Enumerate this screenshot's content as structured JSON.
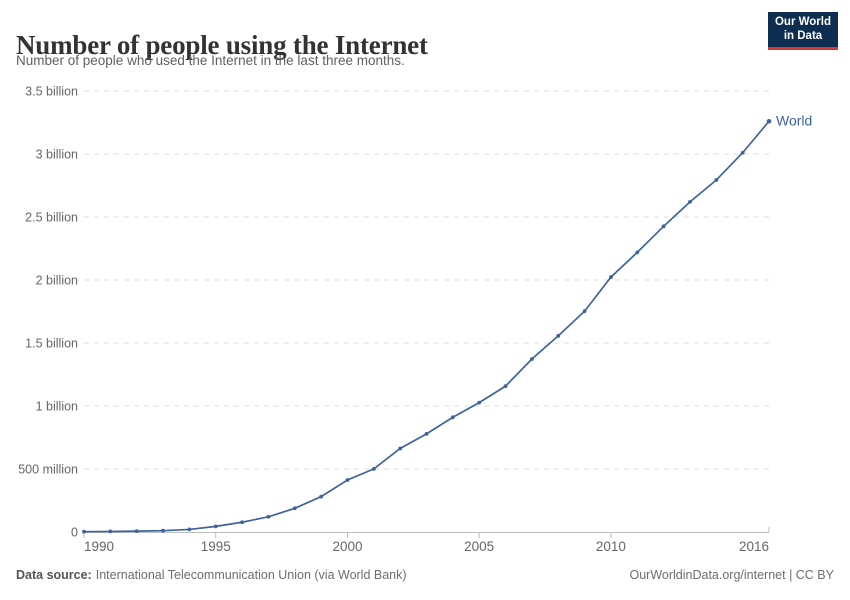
{
  "header": {
    "title": "Number of people using the Internet",
    "subtitle": "Number of people who used the Internet in the last three months.",
    "logo": {
      "line1": "Our World",
      "line2": "in Data"
    }
  },
  "chart_data": {
    "type": "line",
    "title": "Number of people using the Internet",
    "xlabel": "",
    "ylabel": "",
    "unit": "people",
    "x": [
      1990,
      1991,
      1992,
      1993,
      1994,
      1995,
      1996,
      1997,
      1998,
      1999,
      2000,
      2001,
      2002,
      2003,
      2004,
      2005,
      2006,
      2007,
      2008,
      2009,
      2010,
      2011,
      2012,
      2013,
      2014,
      2015,
      2016
    ],
    "series": [
      {
        "name": "World",
        "color": "#3d639e",
        "values_millions": [
          2.6,
          4.5,
          7.0,
          10.3,
          20.5,
          44.8,
          77.4,
          120.8,
          188.0,
          280.9,
          412.8,
          500.6,
          662.7,
          778.6,
          910.4,
          1026.6,
          1157.5,
          1373.0,
          1556.3,
          1752.3,
          2023.2,
          2219.0,
          2426.0,
          2620.0,
          2793.3,
          3010.0,
          3260.0
        ]
      }
    ],
    "end_label": "World",
    "y_ticks": [
      {
        "value_millions": 0,
        "label": "0"
      },
      {
        "value_millions": 500,
        "label": "500 million"
      },
      {
        "value_millions": 1000,
        "label": "1 billion"
      },
      {
        "value_millions": 1500,
        "label": "1.5 billion"
      },
      {
        "value_millions": 2000,
        "label": "2 billion"
      },
      {
        "value_millions": 2500,
        "label": "2.5 billion"
      },
      {
        "value_millions": 3000,
        "label": "3 billion"
      },
      {
        "value_millions": 3500,
        "label": "3.5 billion"
      }
    ],
    "x_ticks": [
      {
        "year": 1990,
        "label": "1990",
        "align": "start"
      },
      {
        "year": 1995,
        "label": "1995",
        "align": "middle"
      },
      {
        "year": 2000,
        "label": "2000",
        "align": "middle"
      },
      {
        "year": 2005,
        "label": "2005",
        "align": "middle"
      },
      {
        "year": 2010,
        "label": "2010",
        "align": "middle"
      },
      {
        "year": 2016,
        "label": "2016",
        "align": "end"
      }
    ],
    "ylim_millions": [
      0,
      3500
    ],
    "xlim": [
      1990,
      2016
    ],
    "grid": "horizontal-dashed",
    "legend": "end-of-line-label"
  },
  "footer": {
    "source_label": "Data source:",
    "source_value": "International Telecommunication Union (via World Bank)",
    "attribution": "OurWorldinData.org/internet | CC BY"
  },
  "colors": {
    "line": "#3d639e",
    "grid": "#dddddd",
    "axis": "#bcbcbc",
    "tick_text": "#666666",
    "title_text": "#333333",
    "subtitle_text": "#616161",
    "logo_bg": "#0d2d51",
    "logo_accent": "#d73a36"
  }
}
